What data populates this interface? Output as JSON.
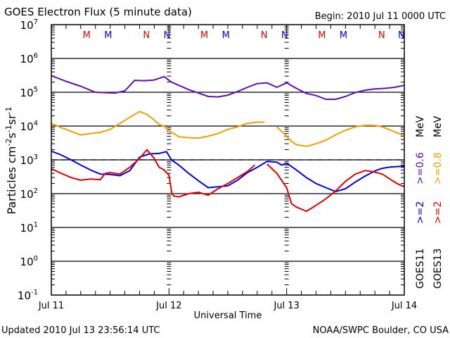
{
  "chart_data": {
    "type": "line",
    "title": "GOES Electron Flux (5 minute data)",
    "subtitle": "Begin: 2010 Jul 11 0000 UTC",
    "xlabel": "Universal Time",
    "ylabel": "Particles cm⁻²s⁻¹sr⁻¹",
    "yscale": "log",
    "ylim": [
      0.1,
      10000000
    ],
    "xlim_hours": [
      0,
      72
    ],
    "x_unit": "hours since 2010 Jul 11 0000 UTC",
    "x_ticks": [
      {
        "hours": 0,
        "label": "Jul 11"
      },
      {
        "hours": 24,
        "label": "Jul 12"
      },
      {
        "hours": 48,
        "label": "Jul 13"
      },
      {
        "hours": 72,
        "label": "Jul 14"
      }
    ],
    "y_ticks": [
      {
        "value": 10000000,
        "base": "10",
        "exp": "7"
      },
      {
        "value": 1000000,
        "base": "10",
        "exp": "6"
      },
      {
        "value": 100000,
        "base": "10",
        "exp": "5"
      },
      {
        "value": 10000,
        "base": "10",
        "exp": "4"
      },
      {
        "value": 1000,
        "base": "10",
        "exp": "3"
      },
      {
        "value": 100,
        "base": "10",
        "exp": "2"
      },
      {
        "value": 10,
        "base": "10",
        "exp": "1"
      },
      {
        "value": 1,
        "base": "10",
        "exp": "0"
      },
      {
        "value": 0.1,
        "base": "10",
        "exp": "-1"
      }
    ],
    "threshold_line": {
      "value": 1000,
      "style": "dashed"
    },
    "grid": "horizontal lines at each decade",
    "markers": [
      {
        "label": "M",
        "hours": 7.2,
        "color": "#e00000"
      },
      {
        "label": "M",
        "hours": 11.6,
        "color": "#0000e0"
      },
      {
        "label": "N",
        "hours": 19.4,
        "color": "#e00000"
      },
      {
        "label": "N",
        "hours": 23.6,
        "color": "#0000e0"
      },
      {
        "label": "M",
        "hours": 31.2,
        "color": "#e00000"
      },
      {
        "label": "M",
        "hours": 35.6,
        "color": "#0000e0"
      },
      {
        "label": "N",
        "hours": 43.4,
        "color": "#e00000"
      },
      {
        "label": "N",
        "hours": 47.6,
        "color": "#0000e0"
      },
      {
        "label": "M",
        "hours": 55.2,
        "color": "#e00000"
      },
      {
        "label": "M",
        "hours": 59.6,
        "color": "#0000e0"
      },
      {
        "label": "N",
        "hours": 67.4,
        "color": "#e00000"
      },
      {
        "label": "N",
        "hours": 71.4,
        "color": "#0000e0"
      }
    ],
    "legend": {
      "placement": "right",
      "columns": [
        {
          "satellite": "GOES11",
          "entries": [
            {
              "text": ">=2",
              "color": "#0000e0"
            },
            {
              "text": ">=0.6",
              "color": "#6010b0"
            }
          ],
          "unit": "MeV"
        },
        {
          "satellite": "GOES13",
          "entries": [
            {
              "text": ">=2",
              "color": "#e00000"
            },
            {
              "text": ">=0.8",
              "color": "#f0a000"
            }
          ],
          "unit": "MeV"
        }
      ]
    },
    "series": [
      {
        "name": "GOES11 >=0.6 MeV",
        "color": "#6010b0",
        "x": [
          0,
          3,
          6,
          9,
          11,
          13,
          15,
          17,
          19,
          21,
          23,
          24.5,
          26,
          28,
          30,
          32,
          34,
          36,
          38,
          40,
          42,
          44,
          46,
          48,
          50,
          52,
          54,
          56,
          58,
          60,
          62,
          64,
          66,
          68,
          70,
          72
        ],
        "y": [
          310000,
          210000,
          150000,
          100000,
          97000,
          95000,
          110000,
          225000,
          220000,
          230000,
          290000,
          200000,
          160000,
          120000,
          95000,
          75000,
          73000,
          82000,
          105000,
          140000,
          180000,
          190000,
          140000,
          190000,
          130000,
          92000,
          80000,
          62000,
          62000,
          75000,
          98000,
          115000,
          125000,
          130000,
          140000,
          160000
        ]
      },
      {
        "name": "GOES13 >=0.8 MeV",
        "color": "#f0a000",
        "x": [
          0,
          2,
          4,
          6,
          8,
          10,
          12,
          14,
          16,
          18,
          19.5,
          21,
          22,
          23,
          24,
          25,
          26,
          28,
          30,
          32,
          34,
          36,
          38,
          40,
          42,
          43.5,
          44,
          46,
          48,
          49,
          50,
          52,
          54,
          56,
          58,
          60,
          62,
          64,
          66,
          67.5,
          71.5,
          72
        ],
        "y": [
          12000,
          9000,
          7000,
          5500,
          6000,
          6500,
          8000,
          12000,
          18000,
          27000,
          22000,
          15000,
          11000,
          10000,
          7000,
          6000,
          4800,
          4500,
          4400,
          5000,
          6000,
          8000,
          9500,
          12000,
          13000,
          13000,
          null,
          9500,
          5000,
          3500,
          2800,
          2500,
          3000,
          3800,
          5500,
          7500,
          9500,
          10500,
          10500,
          9500,
          5500,
          5000
        ]
      },
      {
        "name": "GOES11 >=2 MeV",
        "color": "#0000e0",
        "x": [
          0,
          2,
          4,
          6,
          8,
          10,
          12,
          14,
          16,
          18,
          20,
          22,
          23.5,
          24.5,
          26,
          28,
          30,
          32,
          34,
          36,
          38,
          40,
          42,
          44,
          46,
          47,
          48,
          50,
          52,
          54,
          56,
          58,
          60,
          62,
          64,
          66,
          67.5,
          69,
          72
        ],
        "y": [
          1800,
          1400,
          1000,
          700,
          500,
          380,
          370,
          340,
          480,
          1200,
          1500,
          1550,
          1750,
          1000,
          700,
          400,
          240,
          150,
          160,
          170,
          250,
          420,
          600,
          900,
          850,
          700,
          800,
          500,
          300,
          200,
          150,
          115,
          140,
          220,
          330,
          470,
          560,
          610,
          650
        ]
      },
      {
        "name": "GOES13 >=2 MeV",
        "color": "#e00000",
        "x": [
          0,
          2,
          4,
          6,
          8,
          10,
          11,
          12,
          14,
          16,
          18,
          19.5,
          21,
          22,
          23,
          24,
          24.6,
          25,
          26,
          28,
          30,
          32,
          34,
          36,
          38,
          40,
          41.5,
          42,
          44,
          46,
          48,
          49,
          50,
          51,
          52,
          54,
          56,
          58,
          60,
          62,
          64,
          65.5,
          67.5,
          70.5,
          72
        ],
        "y": [
          550,
          400,
          300,
          250,
          270,
          260,
          400,
          420,
          380,
          600,
          1100,
          2000,
          1100,
          600,
          500,
          350,
          100,
          85,
          80,
          100,
          110,
          90,
          140,
          200,
          300,
          450,
          700,
          null,
          750,
          400,
          150,
          50,
          40,
          35,
          30,
          45,
          70,
          120,
          230,
          380,
          480,
          450,
          380,
          200,
          160
        ]
      }
    ]
  },
  "header": {
    "title": "GOES Electron Flux (5 minute data)",
    "begin": "Begin: 2010 Jul 11 0000 UTC"
  },
  "footer": {
    "updated": "Updated 2010 Jul 13 23:56:14 UTC",
    "source": "NOAA/SWPC Boulder, CO USA"
  },
  "axes": {
    "ylabel_main": "Particles cm",
    "ylabel_e1": "-2",
    "ylabel_s": "s",
    "ylabel_e2": "-1",
    "ylabel_sr": "sr",
    "ylabel_e3": "-1",
    "xlabel": "Universal Time"
  },
  "legend_text": {
    "goes11": "GOES11",
    "goes13": "GOES13",
    "g11_lo": ">=2",
    "g11_hi": ">=0.6",
    "g13_lo": ">=2",
    "g13_hi": ">=0.8",
    "unit": "MeV"
  }
}
